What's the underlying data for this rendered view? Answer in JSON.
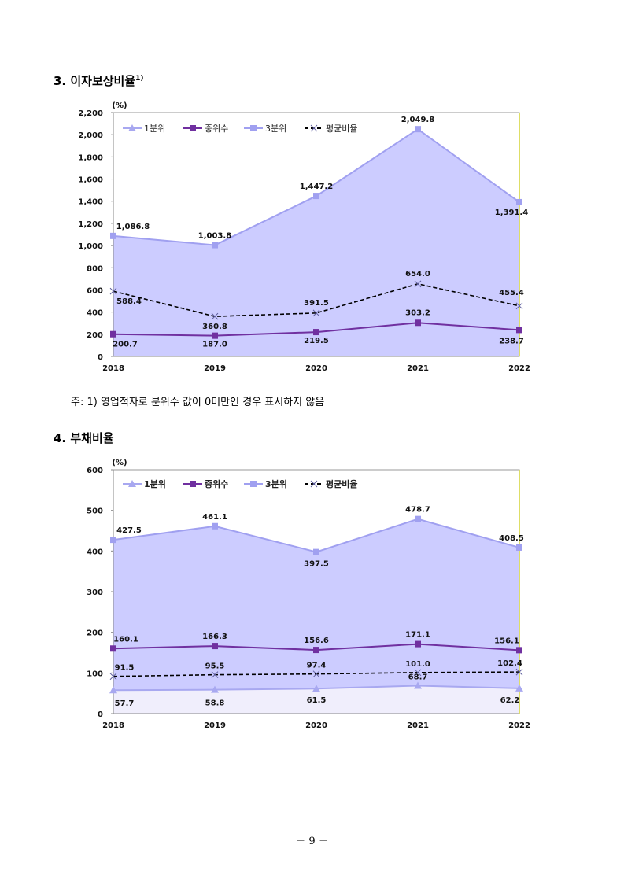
{
  "heading1": {
    "text": "3. 이자보상비율",
    "sup": "1)"
  },
  "note": "주: 1) 영업적자로 분위수 값이 0미만인 경우 표시하지 않음",
  "heading2": {
    "text": "4. 부채비율"
  },
  "page_number": "－ 9 －",
  "colors": {
    "q1": "#a8a8f0",
    "median": "#7030a0",
    "q3": "#a0a0f0",
    "avg": "#000000",
    "area": "#ccccff",
    "area_low": "#f0eefc"
  },
  "chart_data": [
    {
      "type": "line",
      "unit": "(%)",
      "categories": [
        "2018",
        "2019",
        "2020",
        "2021",
        "2022"
      ],
      "ylim": [
        0,
        2200
      ],
      "yticks": [
        "0",
        "200",
        "400",
        "600",
        "800",
        "1,000",
        "1,200",
        "1,400",
        "1,600",
        "1,800",
        "2,000",
        "2,200"
      ],
      "legend": {
        "placement": "top-left",
        "entries": [
          "1분위",
          "중위수",
          "3분위",
          "평균비율"
        ]
      },
      "series": [
        {
          "name": "3분위",
          "values": [
            1086.8,
            1003.8,
            1447.2,
            2049.8,
            1391.4
          ],
          "labels": [
            "1,086.8",
            "1,003.8",
            "1,447.2",
            "2,049.8",
            "1,391.4"
          ]
        },
        {
          "name": "평균비율",
          "values": [
            588.4,
            360.8,
            391.5,
            654.0,
            455.4
          ],
          "labels": [
            "588.4",
            "360.8",
            "391.5",
            "654.0",
            "455.4"
          ]
        },
        {
          "name": "중위수",
          "values": [
            200.7,
            187.0,
            219.5,
            303.2,
            238.7
          ],
          "labels": [
            "200.7",
            "187.0",
            "219.5",
            "303.2",
            "238.7"
          ]
        }
      ]
    },
    {
      "type": "line",
      "unit": "(%)",
      "categories": [
        "2018",
        "2019",
        "2020",
        "2021",
        "2022"
      ],
      "ylim": [
        0,
        600
      ],
      "yticks": [
        "0",
        "100",
        "200",
        "300",
        "400",
        "500",
        "600"
      ],
      "legend": {
        "placement": "top-left",
        "entries": [
          "1분위",
          "중위수",
          "3분위",
          "평균비율"
        ]
      },
      "series": [
        {
          "name": "3분위",
          "values": [
            427.5,
            461.1,
            397.5,
            478.7,
            408.5
          ],
          "labels": [
            "427.5",
            "461.1",
            "397.5",
            "478.7",
            "408.5"
          ]
        },
        {
          "name": "중위수",
          "values": [
            160.1,
            166.3,
            156.6,
            171.1,
            156.1
          ],
          "labels": [
            "160.1",
            "166.3",
            "156.6",
            "171.1",
            "156.1"
          ]
        },
        {
          "name": "평균비율",
          "values": [
            91.5,
            95.5,
            97.4,
            101.0,
            102.4
          ],
          "labels": [
            "91.5",
            "95.5",
            "97.4",
            "101.0",
            "102.4"
          ]
        },
        {
          "name": "1분위",
          "values": [
            57.7,
            58.8,
            61.5,
            68.7,
            62.2
          ],
          "labels": [
            "57.7",
            "58.8",
            "61.5",
            "68.7",
            "62.2"
          ]
        }
      ]
    }
  ]
}
